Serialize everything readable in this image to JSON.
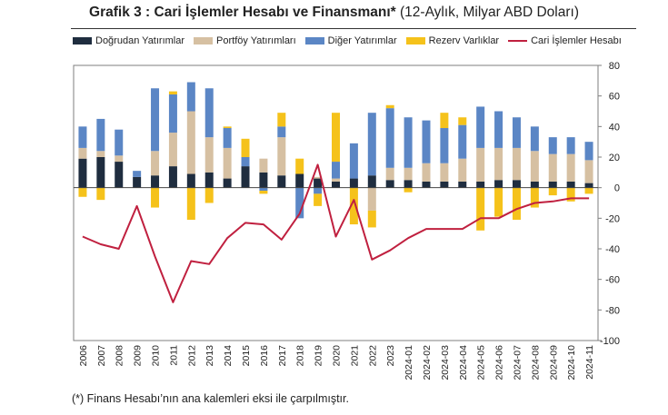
{
  "header": {
    "title_bold": "Grafik 3 : Cari İşlemler Hesabı ve Finansmanı*",
    "title_rest": " (12-Aylık, Milyar ABD Doları)"
  },
  "footnote": "(*) Finans Hesabı’nın ana kalemleri eksi ile çarpılmıştır.",
  "colors": {
    "fdi": "#1f2d3f",
    "portfolio": "#d6c0a2",
    "other": "#5b86c5",
    "reserve": "#f5c21b",
    "current_account": "#c0203f"
  },
  "chart_data": {
    "type": "bar",
    "stacked": true,
    "title": "Grafik 3 : Cari İşlemler Hesabı ve Finansmanı* (12-Aylık, Milyar ABD Doları)",
    "ylim": [
      -100,
      80
    ],
    "yticks": [
      80,
      60,
      40,
      20,
      0,
      -20,
      -40,
      -60,
      -80,
      -100
    ],
    "y_axis_side": "right",
    "legend_position": "top",
    "grid": false,
    "categories": [
      "2006",
      "2007",
      "2008",
      "2009",
      "2010",
      "2011",
      "2012",
      "2013",
      "2014",
      "2015",
      "2016",
      "2017",
      "2018",
      "2019",
      "2020",
      "2021",
      "2022",
      "2023",
      "2024-01",
      "2024-02",
      "2024-03",
      "2024-04",
      "2024-05",
      "2024-06",
      "2024-07",
      "2024-08",
      "2024-09",
      "2024-10",
      "2024-11"
    ],
    "series": [
      {
        "name": "Doğrudan Yatırımlar",
        "type": "bar",
        "color": "#1f2d3f",
        "values": [
          19,
          20,
          17,
          7,
          8,
          14,
          9,
          10,
          6,
          14,
          10,
          8,
          9,
          6,
          4,
          6,
          8,
          5,
          5,
          4,
          4,
          4,
          4,
          5,
          5,
          4,
          4,
          4,
          3
        ]
      },
      {
        "name": "Portföy Yatırımları",
        "type": "bar",
        "color": "#d6c0a2",
        "values": [
          7,
          4,
          4,
          0,
          16,
          22,
          41,
          23,
          20,
          0,
          9,
          25,
          0,
          1,
          2,
          0,
          -15,
          8,
          8,
          12,
          12,
          15,
          22,
          21,
          21,
          20,
          18,
          18,
          15
        ]
      },
      {
        "name": "Diğer Yatırımlar",
        "type": "bar",
        "color": "#5b86c5",
        "values": [
          14,
          21,
          17,
          4,
          41,
          25,
          19,
          32,
          13,
          6,
          -2,
          7,
          -20,
          -4,
          11,
          23,
          41,
          39,
          33,
          28,
          23,
          22,
          27,
          24,
          20,
          16,
          11,
          11,
          12
        ]
      },
      {
        "name": "Rezerv Varlıklar",
        "type": "bar",
        "color": "#f5c21b",
        "values": [
          -6,
          -8,
          0,
          0,
          -13,
          2,
          -21,
          -10,
          1,
          12,
          -2,
          9,
          10,
          -8,
          32,
          -24,
          -11,
          2,
          -3,
          0,
          10,
          5,
          -28,
          -19,
          -21,
          -13,
          -5,
          -9,
          -4
        ]
      },
      {
        "name": "Cari İşlemler Hesabı",
        "type": "line",
        "color": "#c0203f",
        "values": [
          -32,
          -37,
          -40,
          -12,
          -45,
          -75,
          -48,
          -50,
          -33,
          -23,
          -24,
          -34,
          -17,
          15,
          -32,
          -8,
          -47,
          -41,
          -33,
          -27,
          -27,
          -27,
          -20,
          -20,
          -14,
          -10,
          -9,
          -7,
          -7
        ]
      }
    ]
  }
}
